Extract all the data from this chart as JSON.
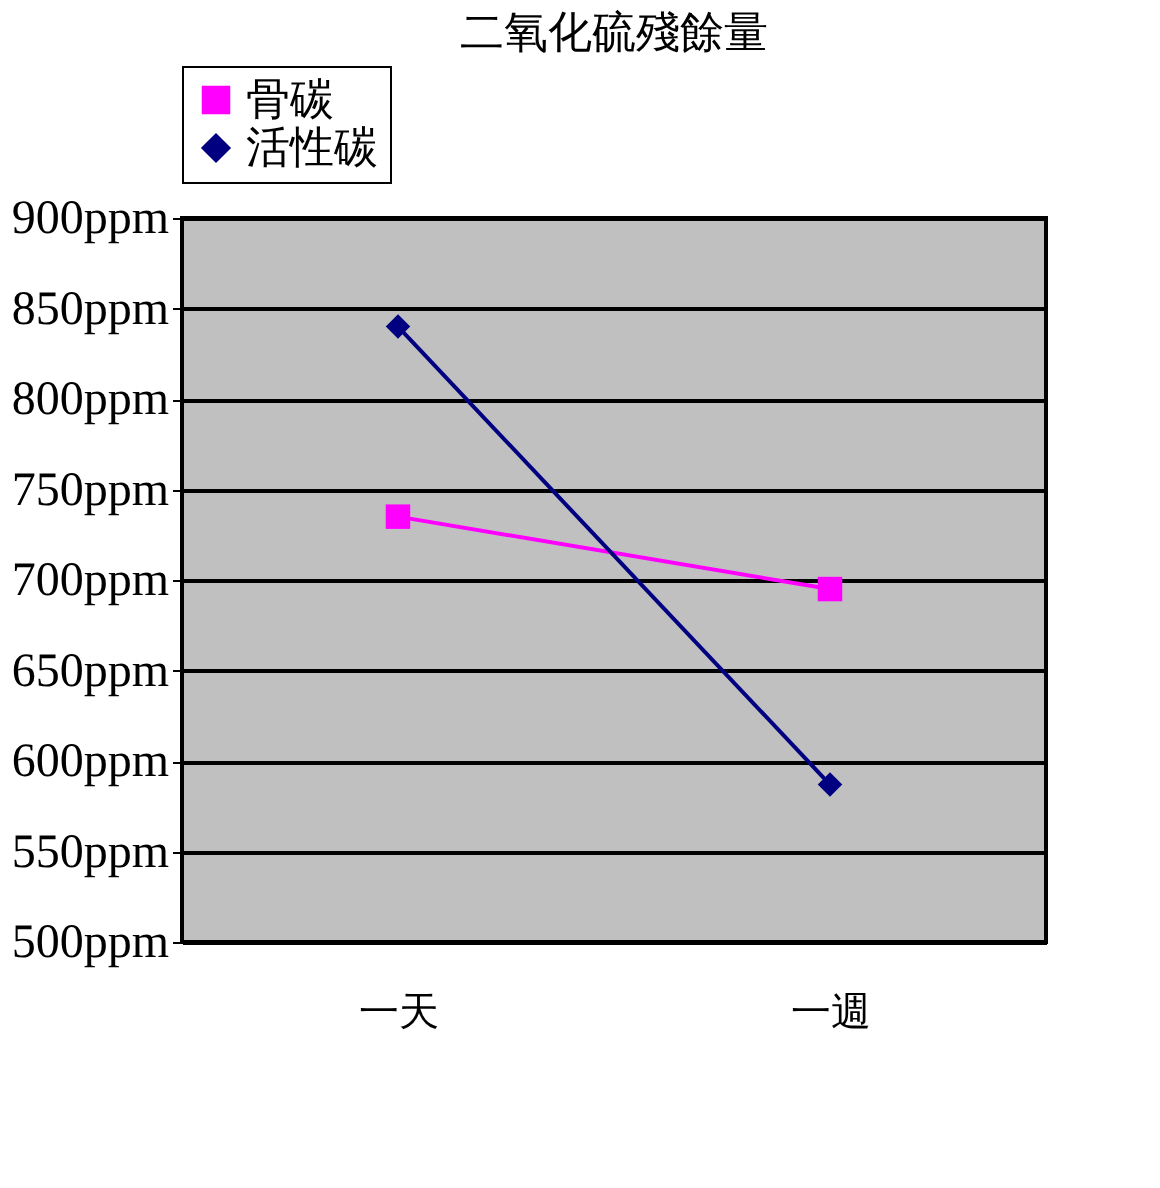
{
  "chart_data": {
    "type": "line",
    "title": "二氧化硫殘餘量",
    "categories": [
      "一天",
      "一週"
    ],
    "series": [
      {
        "name": "骨碳",
        "color": "#ff00ff",
        "marker": "square",
        "values": [
          735,
          695
        ]
      },
      {
        "name": "活性碳",
        "color": "#000080",
        "marker": "diamond",
        "values": [
          840,
          587
        ]
      }
    ],
    "ylim": [
      500,
      900
    ],
    "yticks": [
      {
        "value": 500,
        "label": "500ppm"
      },
      {
        "value": 550,
        "label": "550ppm"
      },
      {
        "value": 600,
        "label": "600ppm"
      },
      {
        "value": 650,
        "label": "650ppm"
      },
      {
        "value": 700,
        "label": "700ppm"
      },
      {
        "value": 750,
        "label": "750ppm"
      },
      {
        "value": 800,
        "label": "800ppm"
      },
      {
        "value": 850,
        "label": "850ppm"
      },
      {
        "value": 900,
        "label": "900ppm"
      }
    ],
    "grid": "y",
    "legend": "top",
    "line_style": "solid"
  }
}
